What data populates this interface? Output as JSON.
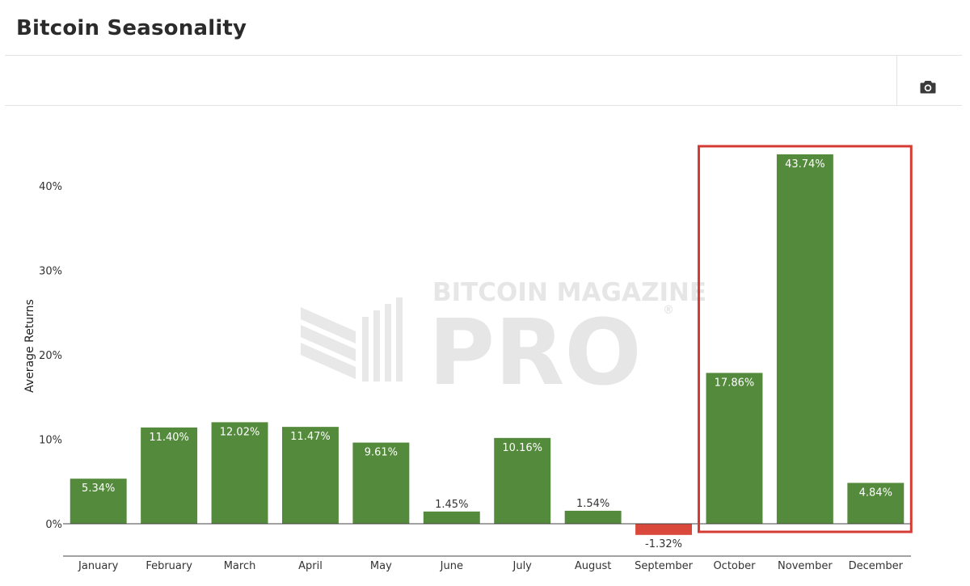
{
  "page": {
    "title": "Bitcoin Seasonality"
  },
  "toolbar": {
    "camera_icon": "camera-icon"
  },
  "watermark": {
    "line1": "BITCOIN MAGAZINE",
    "line2": "PRO",
    "registered": "®"
  },
  "colors": {
    "positive": "#548a3c",
    "negative": "#d9483b",
    "highlight": "#d63b33",
    "axis": "#444444"
  },
  "chart_data": {
    "type": "bar",
    "title": "Bitcoin Seasonality",
    "xlabel": "",
    "ylabel": "Average Returns",
    "categories": [
      "January",
      "February",
      "March",
      "April",
      "May",
      "June",
      "July",
      "August",
      "September",
      "October",
      "November",
      "December"
    ],
    "values": [
      5.34,
      11.4,
      12.02,
      11.47,
      9.61,
      1.45,
      10.16,
      1.54,
      -1.32,
      17.86,
      43.74,
      4.84
    ],
    "data_labels": [
      "5.34%",
      "11.40%",
      "12.02%",
      "11.47%",
      "9.61%",
      "1.45%",
      "10.16%",
      "1.54%",
      "-1.32%",
      "17.86%",
      "43.74%",
      "4.84%"
    ],
    "ylim": [
      -2.5,
      45
    ],
    "yticks": [
      0,
      10,
      20,
      30,
      40
    ],
    "ytick_labels": [
      "0%",
      "10%",
      "20%",
      "30%",
      "40%"
    ],
    "grid": false,
    "highlighted_categories": [
      "October",
      "November",
      "December"
    ]
  }
}
